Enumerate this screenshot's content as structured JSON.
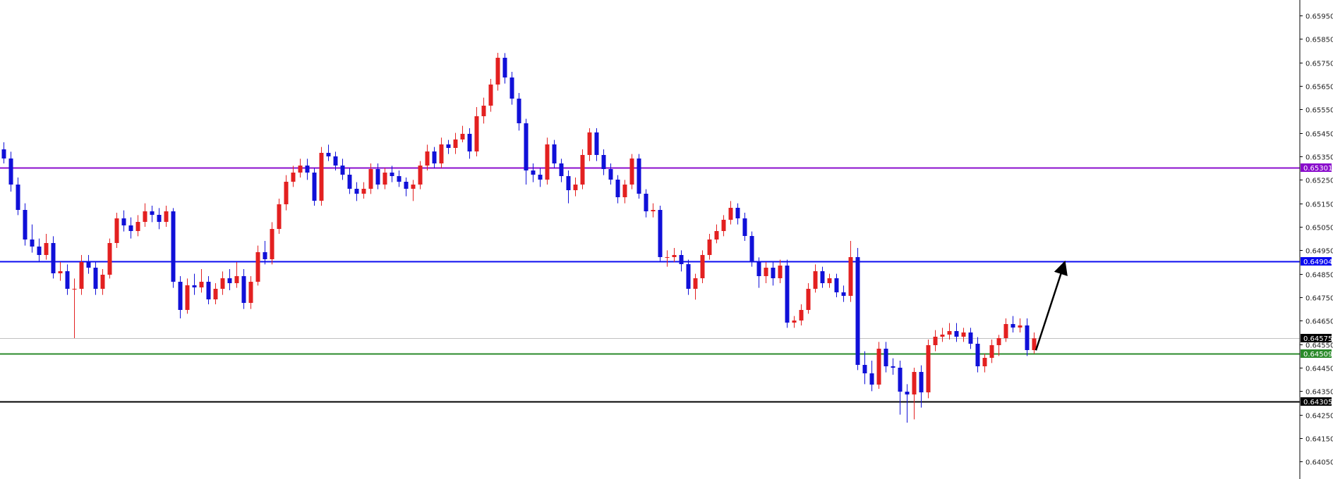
{
  "chart_data": {
    "type": "candlestick",
    "title": "",
    "xlabel": "",
    "ylabel": "",
    "ylim": [
      0.64,
      0.66
    ],
    "grid": false,
    "colors": {
      "bull": "#e32020",
      "bear": "#1010d8",
      "axis": "#000000"
    },
    "y_ticks": [
      "0.65950",
      "0.65850",
      "0.65750",
      "0.65650",
      "0.65550",
      "0.65450",
      "0.65350",
      "0.65250",
      "0.65150",
      "0.65050",
      "0.64950",
      "0.64850",
      "0.64750",
      "0.64650",
      "0.64550",
      "0.64450",
      "0.64350",
      "0.64250",
      "0.64150",
      "0.64050"
    ],
    "levels": [
      {
        "price": 0.65301,
        "label": "0.65301",
        "color": "#8a0ccc",
        "style": "resistance"
      },
      {
        "price": 0.64904,
        "label": "0.64904",
        "color": "#0a0af0",
        "style": "resistance"
      },
      {
        "price": 0.64575,
        "label": "0.64575",
        "color": "#c0c0c0",
        "label_bg": "#000000",
        "style": "bid"
      },
      {
        "price": 0.64509,
        "label": "0.64509",
        "color": "#2a8a2a",
        "style": "support"
      },
      {
        "price": 0.64305,
        "label": "0.64305",
        "color": "#000000",
        "style": "support"
      }
    ],
    "annotation": {
      "type": "arrow",
      "from_price": 0.6453,
      "to_price": 0.64904,
      "color": "#000000"
    },
    "candles_ohlc": [
      [
        0.6538,
        0.6541,
        0.6532,
        0.65341
      ],
      [
        0.65341,
        0.6537,
        0.652,
        0.6523
      ],
      [
        0.6523,
        0.6526,
        0.651,
        0.65122
      ],
      [
        0.65122,
        0.6515,
        0.6497,
        0.64996
      ],
      [
        0.64996,
        0.6506,
        0.6494,
        0.64966
      ],
      [
        0.64966,
        0.65,
        0.649,
        0.6493
      ],
      [
        0.6493,
        0.6502,
        0.6491,
        0.64981
      ],
      [
        0.64981,
        0.6501,
        0.6483,
        0.64852
      ],
      [
        0.64852,
        0.649,
        0.6482,
        0.64861
      ],
      [
        0.64861,
        0.6489,
        0.6476,
        0.64786
      ],
      [
        0.64786,
        0.6483,
        0.64576,
        0.64786
      ],
      [
        0.64786,
        0.6493,
        0.6476,
        0.649
      ],
      [
        0.649,
        0.6493,
        0.6485,
        0.64876
      ],
      [
        0.64876,
        0.649,
        0.6476,
        0.64786
      ],
      [
        0.64786,
        0.6487,
        0.6476,
        0.64846
      ],
      [
        0.64846,
        0.65,
        0.6483,
        0.64981
      ],
      [
        0.64981,
        0.6511,
        0.6496,
        0.65086
      ],
      [
        0.65086,
        0.6512,
        0.6503,
        0.65056
      ],
      [
        0.65056,
        0.6509,
        0.65,
        0.65032
      ],
      [
        0.65032,
        0.651,
        0.6501,
        0.65071
      ],
      [
        0.65071,
        0.6515,
        0.6505,
        0.65116
      ],
      [
        0.65116,
        0.6514,
        0.6507,
        0.65101
      ],
      [
        0.65101,
        0.6513,
        0.6504,
        0.65071
      ],
      [
        0.65071,
        0.6514,
        0.6505,
        0.65116
      ],
      [
        0.65116,
        0.6513,
        0.6479,
        0.64816
      ],
      [
        0.64816,
        0.6484,
        0.6466,
        0.64696
      ],
      [
        0.64696,
        0.6483,
        0.6468,
        0.64801
      ],
      [
        0.64801,
        0.6485,
        0.6476,
        0.64792
      ],
      [
        0.64792,
        0.6487,
        0.6477,
        0.64816
      ],
      [
        0.64816,
        0.6484,
        0.6472,
        0.64741
      ],
      [
        0.64741,
        0.6481,
        0.6472,
        0.64786
      ],
      [
        0.64786,
        0.6486,
        0.6476,
        0.64831
      ],
      [
        0.64831,
        0.6487,
        0.6478,
        0.6481
      ],
      [
        0.6481,
        0.649,
        0.6479,
        0.6484
      ],
      [
        0.6484,
        0.6487,
        0.647,
        0.64726
      ],
      [
        0.64726,
        0.6484,
        0.647,
        0.64816
      ],
      [
        0.64816,
        0.6497,
        0.648,
        0.64942
      ],
      [
        0.64942,
        0.6499,
        0.6489,
        0.64912
      ],
      [
        0.64912,
        0.6507,
        0.6489,
        0.65041
      ],
      [
        0.65041,
        0.6517,
        0.6502,
        0.65146
      ],
      [
        0.65146,
        0.6527,
        0.6512,
        0.65242
      ],
      [
        0.65242,
        0.6531,
        0.6522,
        0.65281
      ],
      [
        0.65281,
        0.6534,
        0.6526,
        0.65311
      ],
      [
        0.65311,
        0.6534,
        0.6525,
        0.65281
      ],
      [
        0.65281,
        0.653,
        0.6514,
        0.65161
      ],
      [
        0.65161,
        0.6539,
        0.6514,
        0.65365
      ],
      [
        0.65365,
        0.654,
        0.6533,
        0.6535
      ],
      [
        0.6535,
        0.6537,
        0.6529,
        0.65311
      ],
      [
        0.65311,
        0.6534,
        0.6525,
        0.65272
      ],
      [
        0.65272,
        0.653,
        0.6519,
        0.65212
      ],
      [
        0.65212,
        0.6524,
        0.6516,
        0.65191
      ],
      [
        0.65191,
        0.6524,
        0.6517,
        0.65212
      ],
      [
        0.65212,
        0.6532,
        0.6519,
        0.65296
      ],
      [
        0.65296,
        0.6532,
        0.6521,
        0.6523
      ],
      [
        0.6523,
        0.653,
        0.6521,
        0.65281
      ],
      [
        0.65281,
        0.6531,
        0.6524,
        0.65266
      ],
      [
        0.65266,
        0.6529,
        0.6522,
        0.65242
      ],
      [
        0.65242,
        0.6526,
        0.6518,
        0.65212
      ],
      [
        0.65212,
        0.6525,
        0.6516,
        0.6523
      ],
      [
        0.6523,
        0.6533,
        0.6521,
        0.65311
      ],
      [
        0.65311,
        0.654,
        0.6529,
        0.65371
      ],
      [
        0.65371,
        0.6539,
        0.653,
        0.6532
      ],
      [
        0.6532,
        0.6543,
        0.653,
        0.65401
      ],
      [
        0.65401,
        0.6542,
        0.6536,
        0.65386
      ],
      [
        0.65386,
        0.6545,
        0.6536,
        0.65422
      ],
      [
        0.65422,
        0.6548,
        0.6541,
        0.65446
      ],
      [
        0.65446,
        0.6547,
        0.6534,
        0.65371
      ],
      [
        0.65371,
        0.6556,
        0.6535,
        0.65521
      ],
      [
        0.65521,
        0.656,
        0.6549,
        0.65566
      ],
      [
        0.65566,
        0.6568,
        0.6554,
        0.65656
      ],
      [
        0.65656,
        0.65791,
        0.6563,
        0.6577
      ],
      [
        0.6577,
        0.6579,
        0.6566,
        0.65686
      ],
      [
        0.65686,
        0.6571,
        0.6557,
        0.65596
      ],
      [
        0.65596,
        0.6562,
        0.6546,
        0.65491
      ],
      [
        0.65491,
        0.6551,
        0.6523,
        0.6529
      ],
      [
        0.6529,
        0.6532,
        0.6524,
        0.65272
      ],
      [
        0.65272,
        0.653,
        0.6522,
        0.65251
      ],
      [
        0.65251,
        0.6543,
        0.6523,
        0.65401
      ],
      [
        0.65401,
        0.6542,
        0.653,
        0.6532
      ],
      [
        0.6532,
        0.6534,
        0.6524,
        0.65266
      ],
      [
        0.65266,
        0.6529,
        0.6515,
        0.65206
      ],
      [
        0.65206,
        0.6526,
        0.6518,
        0.6523
      ],
      [
        0.6523,
        0.6538,
        0.6521,
        0.65356
      ],
      [
        0.65356,
        0.6547,
        0.6533,
        0.65452
      ],
      [
        0.65452,
        0.6547,
        0.6533,
        0.65356
      ],
      [
        0.65356,
        0.6538,
        0.6527,
        0.65296
      ],
      [
        0.65296,
        0.6532,
        0.6523,
        0.65251
      ],
      [
        0.65251,
        0.6527,
        0.6515,
        0.65176
      ],
      [
        0.65176,
        0.6525,
        0.6515,
        0.6523
      ],
      [
        0.6523,
        0.6536,
        0.6521,
        0.65341
      ],
      [
        0.65341,
        0.6536,
        0.6517,
        0.65191
      ],
      [
        0.65191,
        0.6521,
        0.6509,
        0.65116
      ],
      [
        0.65116,
        0.6515,
        0.6509,
        0.65122
      ],
      [
        0.65122,
        0.6514,
        0.649,
        0.64921
      ],
      [
        0.64921,
        0.6495,
        0.6488,
        0.64921
      ],
      [
        0.64921,
        0.6496,
        0.649,
        0.6493
      ],
      [
        0.6493,
        0.6495,
        0.6486,
        0.64891
      ],
      [
        0.64891,
        0.6491,
        0.6476,
        0.64786
      ],
      [
        0.64786,
        0.6485,
        0.6474,
        0.64831
      ],
      [
        0.64831,
        0.6495,
        0.6481,
        0.6493
      ],
      [
        0.6493,
        0.6502,
        0.6491,
        0.64996
      ],
      [
        0.64996,
        0.6506,
        0.6498,
        0.65032
      ],
      [
        0.65032,
        0.651,
        0.6501,
        0.6508
      ],
      [
        0.6508,
        0.6516,
        0.6506,
        0.65131
      ],
      [
        0.65131,
        0.6515,
        0.6506,
        0.65086
      ],
      [
        0.65086,
        0.6511,
        0.6499,
        0.65011
      ],
      [
        0.65011,
        0.6503,
        0.6488,
        0.649
      ],
      [
        0.649,
        0.6492,
        0.6479,
        0.6484
      ],
      [
        0.6484,
        0.649,
        0.6481,
        0.64876
      ],
      [
        0.64876,
        0.649,
        0.648,
        0.64831
      ],
      [
        0.64831,
        0.6491,
        0.6481,
        0.64885
      ],
      [
        0.64885,
        0.6491,
        0.6462,
        0.64642
      ],
      [
        0.64642,
        0.6467,
        0.6462,
        0.64651
      ],
      [
        0.64651,
        0.6472,
        0.6463,
        0.64696
      ],
      [
        0.64696,
        0.6481,
        0.6468,
        0.64786
      ],
      [
        0.64786,
        0.6489,
        0.6477,
        0.64861
      ],
      [
        0.64861,
        0.6488,
        0.6479,
        0.6481
      ],
      [
        0.6481,
        0.6485,
        0.6479,
        0.64831
      ],
      [
        0.64831,
        0.6485,
        0.6475,
        0.64771
      ],
      [
        0.64771,
        0.648,
        0.6473,
        0.64756
      ],
      [
        0.64756,
        0.6499,
        0.6473,
        0.64921
      ],
      [
        0.64921,
        0.6496,
        0.6444,
        0.64462
      ],
      [
        0.64462,
        0.6452,
        0.6438,
        0.64426
      ],
      [
        0.64426,
        0.6448,
        0.6435,
        0.64378
      ],
      [
        0.64378,
        0.6456,
        0.6436,
        0.64531
      ],
      [
        0.64531,
        0.6456,
        0.6443,
        0.64456
      ],
      [
        0.64456,
        0.6449,
        0.6442,
        0.6445
      ],
      [
        0.6445,
        0.6448,
        0.6425,
        0.64348
      ],
      [
        0.64348,
        0.6438,
        0.64216,
        0.64336
      ],
      [
        0.64336,
        0.6445,
        0.6423,
        0.64432
      ],
      [
        0.64432,
        0.6446,
        0.6428,
        0.64345
      ],
      [
        0.64345,
        0.6457,
        0.6432,
        0.64546
      ],
      [
        0.64546,
        0.6461,
        0.6452,
        0.64582
      ],
      [
        0.64582,
        0.6462,
        0.6456,
        0.64591
      ],
      [
        0.64591,
        0.6464,
        0.6457,
        0.64606
      ],
      [
        0.64606,
        0.6464,
        0.6456,
        0.64582
      ],
      [
        0.64582,
        0.6462,
        0.6456,
        0.646
      ],
      [
        0.646,
        0.6462,
        0.6453,
        0.64552
      ],
      [
        0.64552,
        0.6458,
        0.6443,
        0.64456
      ],
      [
        0.64456,
        0.6451,
        0.6443,
        0.64492
      ],
      [
        0.64492,
        0.6457,
        0.6447,
        0.64546
      ],
      [
        0.64546,
        0.6459,
        0.645,
        0.64576
      ],
      [
        0.64576,
        0.6466,
        0.6456,
        0.64636
      ],
      [
        0.64636,
        0.6467,
        0.646,
        0.64621
      ],
      [
        0.64621,
        0.6466,
        0.646,
        0.6463
      ],
      [
        0.6463,
        0.6466,
        0.645,
        0.64525
      ],
      [
        0.64525,
        0.646,
        0.6451,
        0.64575
      ]
    ]
  }
}
